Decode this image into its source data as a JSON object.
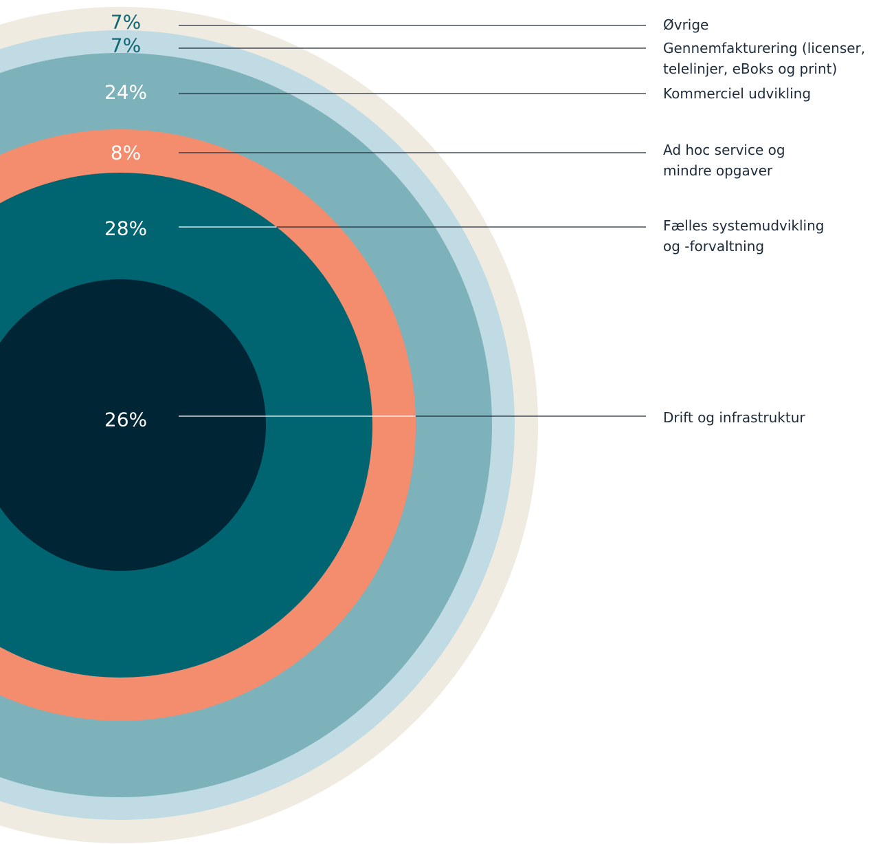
{
  "chart_data": {
    "type": "concentric-circles",
    "title": "",
    "series": [
      {
        "label": "Øvrige",
        "value": 7,
        "value_label": "7%",
        "color": "#efebe0",
        "text_color": "#0e6874",
        "legend_lines": [
          "Øvrige"
        ]
      },
      {
        "label": "Gennemfakturering (licenser, telelinjer, eBoks og print)",
        "value": 7,
        "value_label": "7%",
        "color": "#c0dbe3",
        "text_color": "#0e6874",
        "legend_lines": [
          "Gennemfakturering (licenser,",
          "telelinjer, eBoks og print)"
        ]
      },
      {
        "label": "Kommerciel udvikling",
        "value": 24,
        "value_label": "24%",
        "color": "#7db2bb",
        "text_color": "#ffffff",
        "legend_lines": [
          "Kommerciel udvikling"
        ]
      },
      {
        "label": "Ad hoc service og mindre opgaver",
        "value": 8,
        "value_label": "8%",
        "color": "#f48c6e",
        "text_color": "#ffffff",
        "legend_lines": [
          "Ad hoc service og",
          "mindre opgaver"
        ]
      },
      {
        "label": "Fælles systemudvikling og -forvaltning",
        "value": 28,
        "value_label": "28%",
        "color": "#006570",
        "text_color": "#ffffff",
        "legend_lines": [
          "Fælles systemudvikling",
          "og -forvaltning"
        ]
      },
      {
        "label": "Drift og infrastruktur",
        "value": 26,
        "value_label": "26%",
        "color": "#002535",
        "text_color": "#ffffff",
        "legend_lines": [
          "Drift og infrastruktur"
        ]
      }
    ]
  },
  "colors": {
    "leader_line": "#1d2b3a",
    "leader_line_on_dark": "#ffffff",
    "legend_text": "#1d2b3a"
  }
}
